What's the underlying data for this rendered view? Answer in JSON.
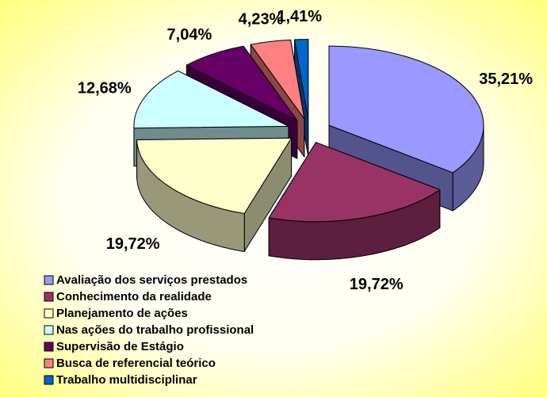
{
  "chart_data": {
    "type": "pie",
    "categories": [
      "Avaliação dos serviços prestados",
      "Conhecimento da realidade",
      "Planejamento de ações",
      "Nas ações do trabalho profissional",
      "Supervisão de Estágio",
      "Busca de referencial teórico",
      "Trabalho multidisciplinar"
    ],
    "values": [
      35.21,
      19.72,
      19.72,
      12.68,
      7.04,
      4.23,
      1.41
    ],
    "value_labels": [
      "35,21%",
      "19,72%",
      "19,72%",
      "12,68%",
      "7,04%",
      "4,23%",
      "1,41%"
    ],
    "colors": [
      "#9999ff",
      "#993366",
      "#ffffcc",
      "#ccffff",
      "#660066",
      "#ff8080",
      "#0066cc"
    ],
    "legend": "bottom-left"
  }
}
